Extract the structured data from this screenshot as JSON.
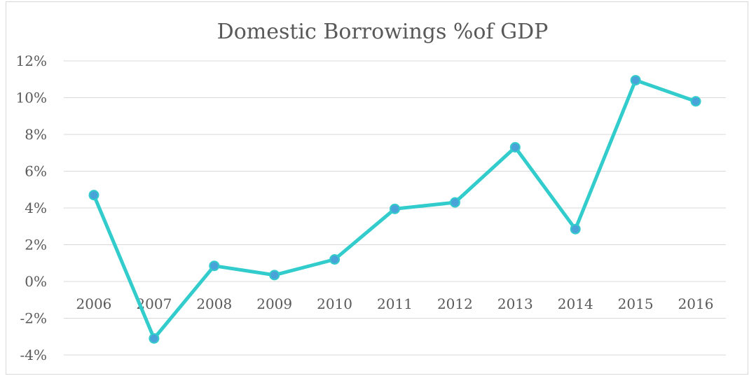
{
  "chart_data": {
    "type": "line",
    "title": "Domestic Borrowings %of GDP",
    "xlabel": "",
    "ylabel": "",
    "categories": [
      "2006",
      "2007",
      "2008",
      "2009",
      "2010",
      "2011",
      "2012",
      "2013",
      "2014",
      "2015",
      "2016"
    ],
    "series": [
      {
        "values": [
          4.7,
          -3.1,
          0.85,
          0.35,
          1.2,
          3.95,
          4.3,
          7.3,
          2.85,
          10.95,
          9.8
        ]
      }
    ],
    "ylim": [
      -4,
      12
    ],
    "y_ticks": [
      12,
      10,
      8,
      6,
      4,
      2,
      0,
      -2,
      -4
    ],
    "y_tick_labels": [
      "12%",
      "10%",
      "8%",
      "6%",
      "4%",
      "2%",
      "0%",
      "-2%",
      "-4%"
    ],
    "grid": true,
    "legend": "none",
    "colors": {
      "line": "#33cccc",
      "marker_fill": "#4aa3d8",
      "marker_stroke": "#33cccc",
      "grid": "#d9d9d9",
      "text": "#595959"
    }
  }
}
